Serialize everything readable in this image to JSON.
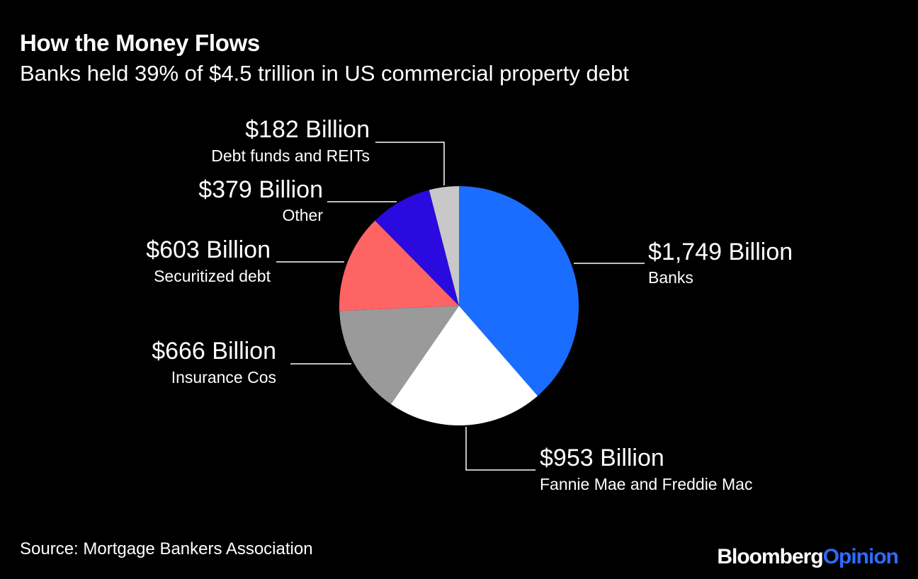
{
  "header": {
    "title": "How the Money Flows",
    "subtitle": "Banks held 39% of $4.5 trillion in US commercial property debt"
  },
  "footer": {
    "source": "Source: Mortgage Bankers Association",
    "brand_part1": "Bloomberg",
    "brand_part2": "Opinion"
  },
  "chart_data": {
    "type": "pie",
    "title": "How the Money Flows",
    "subtitle": "Banks held 39% of $4.5 trillion in US commercial property debt",
    "unit": "Billion",
    "slices": [
      {
        "label": "Banks",
        "value": 1749,
        "value_label": "$1,749 Billion",
        "color": "#1a6dff"
      },
      {
        "label": "Fannie Mae and Freddie Mac",
        "value": 953,
        "value_label": "$953 Billion",
        "color": "#ffffff"
      },
      {
        "label": "Insurance Cos",
        "value": 666,
        "value_label": "$666 Billion",
        "color": "#9a9a9a"
      },
      {
        "label": "Securitized debt",
        "value": 603,
        "value_label": "$603 Billion",
        "color": "#ff6464"
      },
      {
        "label": "Other",
        "value": 379,
        "value_label": "$379 Billion",
        "color": "#2a0adf"
      },
      {
        "label": "Debt funds and REITs",
        "value": 182,
        "value_label": "$182 Billion",
        "color": "#c8c8c8"
      }
    ],
    "start_angle": "12 o'clock",
    "direction": "clockwise",
    "source": "Source: Mortgage Bankers Association"
  }
}
